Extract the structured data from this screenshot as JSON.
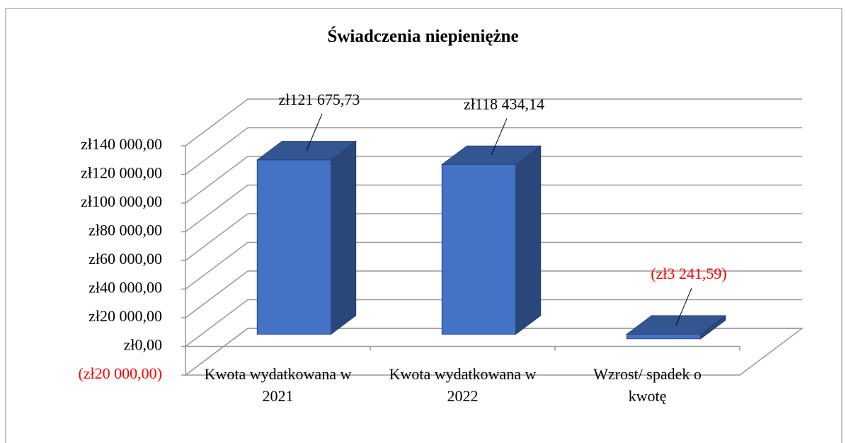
{
  "chart_data": {
    "type": "bar3d",
    "title": "Świadczenia niepieniężne",
    "categories": [
      "Kwota wydatkowana w 2021",
      "Kwota wydatkowana w 2022",
      "Wzrost/ spadek o kwotę"
    ],
    "values": [
      121675.73,
      118434.14,
      -3241.59
    ],
    "value_labels": [
      "zł121 675,73",
      "zł118 434,14",
      "(zł3 241,59)"
    ],
    "color": "#4472c4",
    "negative_label_color": "#ff0000",
    "ylim": [
      -20000,
      140000
    ],
    "yticks": [
      {
        "value": -20000,
        "label": "(zł20 000,00)"
      },
      {
        "value": 0,
        "label": "zł0,00"
      },
      {
        "value": 20000,
        "label": "zł20 000,00"
      },
      {
        "value": 40000,
        "label": "zł40 000,00"
      },
      {
        "value": 60000,
        "label": "zł60 000,00"
      },
      {
        "value": 80000,
        "label": "zł80 000,00"
      },
      {
        "value": 100000,
        "label": "zł100 000,00"
      },
      {
        "value": 120000,
        "label": "zł120 000,00"
      },
      {
        "value": 140000,
        "label": "zł140 000,00"
      }
    ],
    "grid": true
  }
}
